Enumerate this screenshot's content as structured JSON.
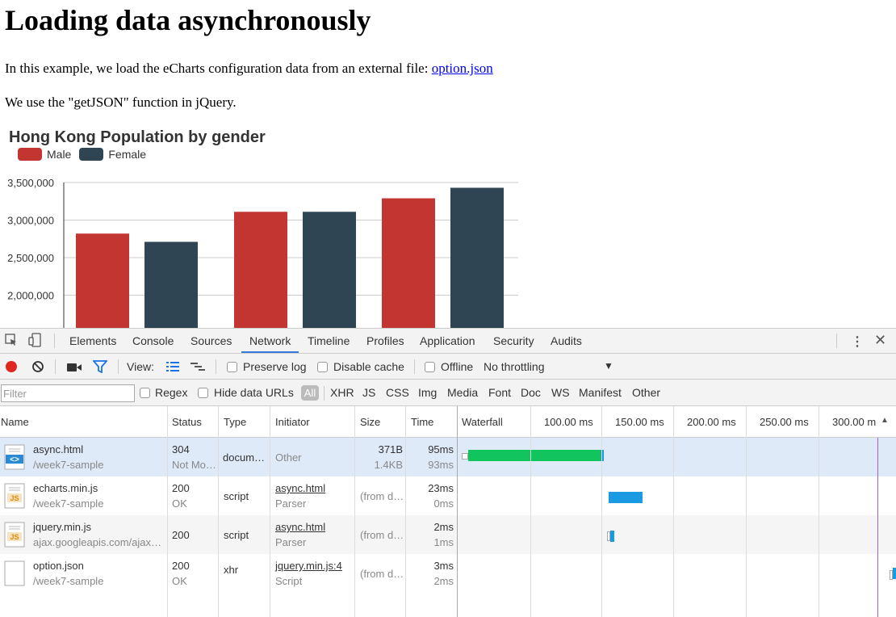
{
  "page": {
    "heading": "Loading data asynchronously",
    "intro": "In this example, we load the eCharts configuration data from an external file:",
    "intro_link": "option.json",
    "getjson_note": "We use the \"getJSON\" function in jQuery."
  },
  "chart_data": {
    "type": "bar",
    "title": "Hong Kong Population by gender",
    "legend": [
      "Male",
      "Female"
    ],
    "colors": {
      "Male": "#c23531",
      "Female": "#2f4554"
    },
    "series": [
      {
        "name": "Male",
        "values": [
          2820000,
          3110000,
          3290000
        ]
      },
      {
        "name": "Female",
        "values": [
          2710000,
          3110000,
          3430000
        ]
      }
    ],
    "y_ticks": [
      "3,500,000",
      "3,000,000",
      "2,500,000",
      "2,000,000"
    ],
    "y_tick_values": [
      3500000,
      3000000,
      2500000,
      2000000
    ],
    "grid": true,
    "legend_placement": "top-left"
  },
  "devtools": {
    "tabs": [
      "Elements",
      "Console",
      "Sources",
      "Network",
      "Timeline",
      "Profiles",
      "Application",
      "Security",
      "Audits"
    ],
    "active_tab": "Network",
    "toolbar": {
      "view_label": "View:",
      "preserve_log": "Preserve log",
      "disable_cache": "Disable cache",
      "offline": "Offline",
      "throttling": "No throttling"
    },
    "filterbar": {
      "filter_placeholder": "Filter",
      "regex": "Regex",
      "hide_data_urls": "Hide data URLs",
      "all": "All",
      "types": [
        "XHR",
        "JS",
        "CSS",
        "Img",
        "Media",
        "Font",
        "Doc",
        "WS",
        "Manifest",
        "Other"
      ]
    },
    "columns": [
      "Name",
      "Status",
      "Type",
      "Initiator",
      "Size",
      "Time",
      "Waterfall"
    ],
    "waterfall_ticks": [
      "100.00 ms",
      "150.00 ms",
      "200.00 ms",
      "250.00 ms",
      "300.00 m"
    ],
    "requests": [
      {
        "name": "async.html",
        "path": "/week7-sample",
        "status": "304",
        "status_text": "Not Mo…",
        "type": "docum…",
        "initiator": "Other",
        "initiator_sub": "",
        "size": "371B",
        "size_sub": "1.4KB",
        "time": "95ms",
        "time_sub": "93ms",
        "icon": "html-file-icon"
      },
      {
        "name": "echarts.min.js",
        "path": "/week7-sample",
        "status": "200",
        "status_text": "OK",
        "type": "script",
        "initiator": "async.html",
        "initiator_sub": "Parser",
        "size": "(from d…",
        "size_sub": "",
        "time": "23ms",
        "time_sub": "0ms",
        "icon": "js-file-icon"
      },
      {
        "name": "jquery.min.js",
        "path": "ajax.googleapis.com/ajax…",
        "status": "200",
        "status_text": "",
        "type": "script",
        "initiator": "async.html",
        "initiator_sub": "Parser",
        "size": "(from d…",
        "size_sub": "",
        "time": "2ms",
        "time_sub": "1ms",
        "icon": "js-file-icon"
      },
      {
        "name": "option.json",
        "path": "/week7-sample",
        "status": "200",
        "status_text": "OK",
        "type": "xhr",
        "initiator": "jquery.min.js:4",
        "initiator_sub": "Script",
        "size": "(from d…",
        "size_sub": "",
        "time": "3ms",
        "time_sub": "2ms",
        "icon": "generic-file-icon"
      }
    ]
  }
}
